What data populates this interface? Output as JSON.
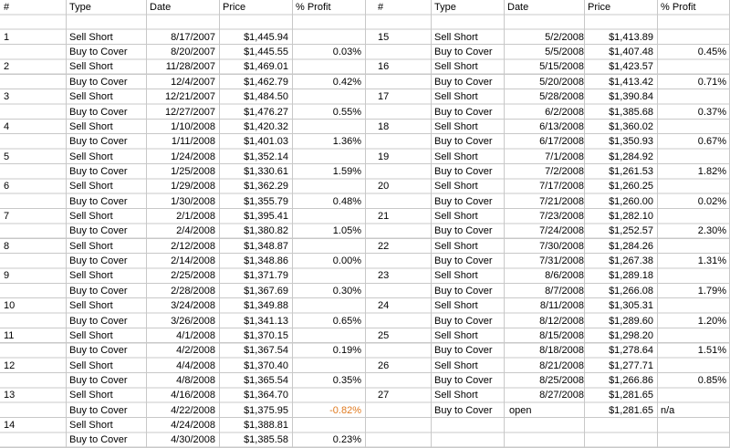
{
  "colors": {
    "negative": "#e07a1f",
    "gridline": "#c8c8c8"
  },
  "headers": [
    "#",
    "Type",
    "Date",
    "Price",
    "% Profit"
  ],
  "left_rows": [
    [
      "",
      "",
      "",
      "",
      ""
    ],
    [
      "1",
      "Sell Short",
      "8/17/2007",
      "$1,445.94",
      ""
    ],
    [
      "",
      "Buy to Cover",
      "8/20/2007",
      "$1,445.55",
      "0.03%"
    ],
    [
      "2",
      "Sell Short",
      "11/28/2007",
      "$1,469.01",
      ""
    ],
    [
      "",
      "Buy to Cover",
      "12/4/2007",
      "$1,462.79",
      "0.42%"
    ],
    [
      "3",
      "Sell Short",
      "12/21/2007",
      "$1,484.50",
      ""
    ],
    [
      "",
      "Buy to Cover",
      "12/27/2007",
      "$1,476.27",
      "0.55%"
    ],
    [
      "4",
      "Sell Short",
      "1/10/2008",
      "$1,420.32",
      ""
    ],
    [
      "",
      "Buy to Cover",
      "1/11/2008",
      "$1,401.03",
      "1.36%"
    ],
    [
      "5",
      "Sell Short",
      "1/24/2008",
      "$1,352.14",
      ""
    ],
    [
      "",
      "Buy to Cover",
      "1/25/2008",
      "$1,330.61",
      "1.59%"
    ],
    [
      "6",
      "Sell Short",
      "1/29/2008",
      "$1,362.29",
      ""
    ],
    [
      "",
      "Buy to Cover",
      "1/30/2008",
      "$1,355.79",
      "0.48%"
    ],
    [
      "7",
      "Sell Short",
      "2/1/2008",
      "$1,395.41",
      ""
    ],
    [
      "",
      "Buy to Cover",
      "2/4/2008",
      "$1,380.82",
      "1.05%"
    ],
    [
      "8",
      "Sell Short",
      "2/12/2008",
      "$1,348.87",
      ""
    ],
    [
      "",
      "Buy to Cover",
      "2/14/2008",
      "$1,348.86",
      "0.00%"
    ],
    [
      "9",
      "Sell Short",
      "2/25/2008",
      "$1,371.79",
      ""
    ],
    [
      "",
      "Buy to Cover",
      "2/28/2008",
      "$1,367.69",
      "0.30%"
    ],
    [
      "10",
      "Sell Short",
      "3/24/2008",
      "$1,349.88",
      ""
    ],
    [
      "",
      "Buy to Cover",
      "3/26/2008",
      "$1,341.13",
      "0.65%"
    ],
    [
      "11",
      "Sell Short",
      "4/1/2008",
      "$1,370.15",
      ""
    ],
    [
      "",
      "Buy to Cover",
      "4/2/2008",
      "$1,367.54",
      "0.19%"
    ],
    [
      "12",
      "Sell Short",
      "4/4/2008",
      "$1,370.40",
      ""
    ],
    [
      "",
      "Buy to Cover",
      "4/8/2008",
      "$1,365.54",
      "0.35%"
    ],
    [
      "13",
      "Sell Short",
      "4/16/2008",
      "$1,364.70",
      ""
    ],
    [
      "",
      "Buy to Cover",
      "4/22/2008",
      "$1,375.95",
      "-0.82%"
    ],
    [
      "14",
      "Sell Short",
      "4/24/2008",
      "$1,388.81",
      ""
    ],
    [
      "",
      "Buy to Cover",
      "4/30/2008",
      "$1,385.58",
      "0.23%"
    ]
  ],
  "right_rows": [
    [
      "",
      "",
      "",
      "",
      ""
    ],
    [
      "15",
      "Sell Short",
      "5/2/2008",
      "$1,413.89",
      ""
    ],
    [
      "",
      "Buy to Cover",
      "5/5/2008",
      "$1,407.48",
      "0.45%"
    ],
    [
      "16",
      "Sell Short",
      "5/15/2008",
      "$1,423.57",
      ""
    ],
    [
      "",
      "Buy to Cover",
      "5/20/2008",
      "$1,413.42",
      "0.71%"
    ],
    [
      "17",
      "Sell Short",
      "5/28/2008",
      "$1,390.84",
      ""
    ],
    [
      "",
      "Buy to Cover",
      "6/2/2008",
      "$1,385.68",
      "0.37%"
    ],
    [
      "18",
      "Sell Short",
      "6/13/2008",
      "$1,360.02",
      ""
    ],
    [
      "",
      "Buy to Cover",
      "6/17/2008",
      "$1,350.93",
      "0.67%"
    ],
    [
      "19",
      "Sell Short",
      "7/1/2008",
      "$1,284.92",
      ""
    ],
    [
      "",
      "Buy to Cover",
      "7/2/2008",
      "$1,261.53",
      "1.82%"
    ],
    [
      "20",
      "Sell Short",
      "7/17/2008",
      "$1,260.25",
      ""
    ],
    [
      "",
      "Buy to Cover",
      "7/21/2008",
      "$1,260.00",
      "0.02%"
    ],
    [
      "21",
      "Sell Short",
      "7/23/2008",
      "$1,282.10",
      ""
    ],
    [
      "",
      "Buy to Cover",
      "7/24/2008",
      "$1,252.57",
      "2.30%"
    ],
    [
      "22",
      "Sell Short",
      "7/30/2008",
      "$1,284.26",
      ""
    ],
    [
      "",
      "Buy to Cover",
      "7/31/2008",
      "$1,267.38",
      "1.31%"
    ],
    [
      "23",
      "Sell Short",
      "8/6/2008",
      "$1,289.18",
      ""
    ],
    [
      "",
      "Buy to Cover",
      "8/7/2008",
      "$1,266.08",
      "1.79%"
    ],
    [
      "24",
      "Sell Short",
      "8/11/2008",
      "$1,305.31",
      ""
    ],
    [
      "",
      "Buy to Cover",
      "8/12/2008",
      "$1,289.60",
      "1.20%"
    ],
    [
      "25",
      "Sell Short",
      "8/15/2008",
      "$1,298.20",
      ""
    ],
    [
      "",
      "Buy to Cover",
      "8/18/2008",
      "$1,278.64",
      "1.51%"
    ],
    [
      "26",
      "Sell Short",
      "8/21/2008",
      "$1,277.71",
      ""
    ],
    [
      "",
      "Buy to Cover",
      "8/25/2008",
      "$1,266.86",
      "0.85%"
    ],
    [
      "27",
      "Sell Short",
      "8/27/2008",
      "$1,281.65",
      ""
    ],
    [
      "",
      "Buy to Cover",
      "open",
      "$1,281.65",
      "n/a"
    ],
    [
      "",
      "",
      "",
      "",
      ""
    ],
    [
      "",
      "",
      "",
      "",
      ""
    ]
  ]
}
